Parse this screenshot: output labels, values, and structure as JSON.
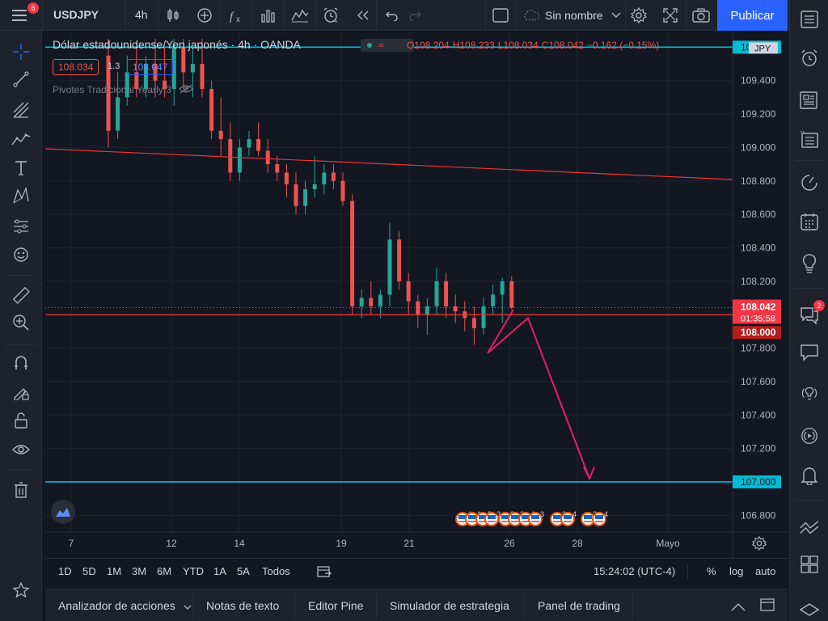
{
  "topbar": {
    "symbol": "USDJPY",
    "interval": "4h",
    "layout_name": "Sin nombre",
    "publish_label": "Publicar",
    "menu_badge": "6"
  },
  "legend": {
    "title": "Dólar estadounidense/Yen japonés · 4h · OANDA",
    "open": "O108.204",
    "high": "H108.233",
    "low": "L108.034",
    "close": "C108.042",
    "change": "−0.162 (−0.15%)",
    "bid": "108.034",
    "spread": "1.3",
    "ask": "108.047",
    "indicator": "Pivotes Tradicional Yearly 3"
  },
  "price_axis": {
    "currency": "JPY",
    "ticks": [
      "109.400",
      "109.200",
      "109.000",
      "108.800",
      "108.600",
      "108.400",
      "108.200",
      "107.800",
      "107.600",
      "107.400",
      "107.200",
      "106.800"
    ],
    "current_price": "108.042",
    "countdown": "01:35:58",
    "line_108": "108.000",
    "line_107": "107.000",
    "top_label": "109.600"
  },
  "time_axis": {
    "ticks": [
      "7",
      "12",
      "14",
      "19",
      "21",
      "26",
      "28",
      "Mayo"
    ]
  },
  "ranges": [
    "1D",
    "5D",
    "1M",
    "3M",
    "6M",
    "YTD",
    "1A",
    "5A",
    "Todos"
  ],
  "clock": "15:24:02 (UTC-4)",
  "scale_options": {
    "percent": "%",
    "log": "log",
    "auto": "auto"
  },
  "bottom_tabs": [
    "Analizador de acciones",
    "Notas de texto",
    "Editor Pine",
    "Simulador de estrategia",
    "Panel de trading"
  ],
  "right_toolbar": {
    "chat_badge": "2"
  },
  "events": {
    "labels": [
      "4",
      "1",
      "2",
      "3",
      "8",
      "3",
      "4",
      "3",
      "2",
      "4",
      "2"
    ]
  },
  "colors": {
    "up": "#26a69a",
    "down": "#ef5350",
    "accent": "#2962ff",
    "cyan_line": "#00bcd4",
    "projection": "#e91e63"
  },
  "chart_data": {
    "type": "candlestick",
    "ylim": [
      106.7,
      109.65
    ],
    "candles": [
      [
        109.55,
        109.65,
        109.0,
        109.1
      ],
      [
        109.1,
        109.45,
        109.05,
        109.3
      ],
      [
        109.3,
        109.55,
        109.25,
        109.45
      ],
      [
        109.45,
        109.6,
        109.3,
        109.35
      ],
      [
        109.35,
        109.55,
        109.3,
        109.5
      ],
      [
        109.5,
        109.65,
        109.3,
        109.4
      ],
      [
        109.4,
        109.6,
        109.3,
        109.35
      ],
      [
        109.35,
        109.65,
        109.25,
        109.6
      ],
      [
        109.6,
        109.65,
        109.35,
        109.45
      ],
      [
        109.45,
        109.6,
        109.3,
        109.5
      ],
      [
        109.5,
        109.65,
        109.3,
        109.35
      ],
      [
        109.35,
        109.4,
        109.05,
        109.1
      ],
      [
        109.1,
        109.3,
        108.95,
        109.05
      ],
      [
        109.05,
        109.15,
        108.8,
        108.85
      ],
      [
        108.85,
        109.05,
        108.8,
        109.0
      ],
      [
        109.0,
        109.1,
        108.95,
        109.05
      ],
      [
        109.05,
        109.15,
        108.95,
        108.98
      ],
      [
        108.98,
        109.05,
        108.85,
        108.9
      ],
      [
        108.9,
        108.95,
        108.8,
        108.85
      ],
      [
        108.85,
        108.9,
        108.7,
        108.78
      ],
      [
        108.78,
        108.85,
        108.6,
        108.65
      ],
      [
        108.65,
        108.8,
        108.6,
        108.75
      ],
      [
        108.75,
        108.95,
        108.7,
        108.78
      ],
      [
        108.78,
        108.9,
        108.72,
        108.85
      ],
      [
        108.85,
        108.9,
        108.75,
        108.8
      ],
      [
        108.8,
        108.85,
        108.65,
        108.68
      ],
      [
        108.68,
        108.72,
        108.0,
        108.05
      ],
      [
        108.05,
        108.15,
        107.98,
        108.1
      ],
      [
        108.1,
        108.2,
        108.0,
        108.05
      ],
      [
        108.05,
        108.15,
        107.98,
        108.12
      ],
      [
        108.12,
        108.55,
        108.05,
        108.45
      ],
      [
        108.45,
        108.5,
        108.15,
        108.2
      ],
      [
        108.2,
        108.25,
        108.0,
        108.08
      ],
      [
        108.08,
        108.12,
        107.92,
        108.0
      ],
      [
        108.0,
        108.1,
        107.88,
        108.05
      ],
      [
        108.05,
        108.28,
        108.0,
        108.2
      ],
      [
        108.2,
        108.25,
        107.98,
        108.05
      ],
      [
        108.05,
        108.12,
        107.95,
        108.02
      ],
      [
        108.02,
        108.08,
        107.9,
        107.98
      ],
      [
        107.98,
        108.05,
        107.82,
        107.92
      ],
      [
        107.92,
        108.1,
        107.88,
        108.05
      ],
      [
        108.05,
        108.18,
        108.0,
        108.12
      ],
      [
        108.12,
        108.22,
        107.95,
        108.2
      ],
      [
        108.2,
        108.23,
        108.03,
        108.042
      ]
    ],
    "lines": [
      {
        "name": "108.000",
        "y": 108.0
      },
      {
        "name": "107.000",
        "y": 107.0
      },
      {
        "name": "109.600",
        "y": 109.6
      }
    ]
  }
}
